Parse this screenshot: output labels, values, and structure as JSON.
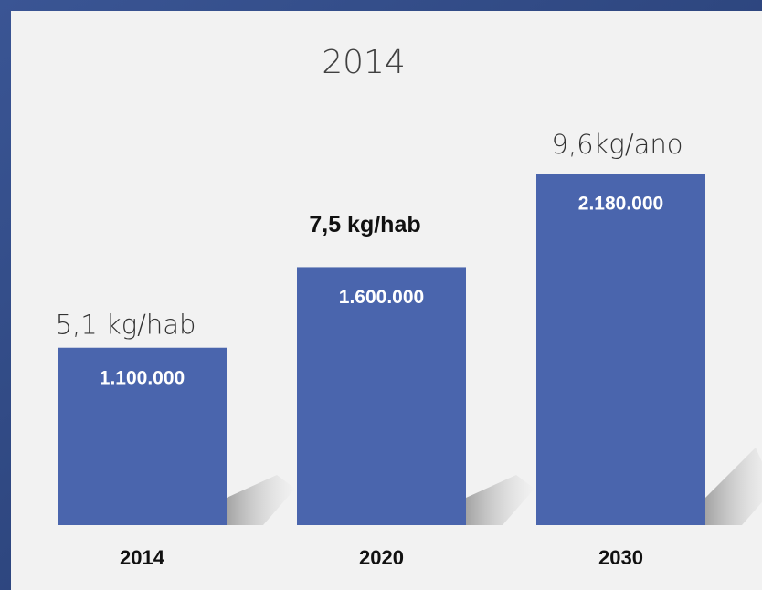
{
  "chart_data": {
    "type": "bar",
    "title": "2014",
    "categories": [
      "2014",
      "2020",
      "2030"
    ],
    "values": [
      1100000,
      1600000,
      2180000
    ],
    "value_labels": [
      "1.100.000",
      "1.600.000",
      "2.180.000"
    ],
    "annotations": [
      "5,1 kg/hab",
      "7,5 kg/hab",
      "9,6kg/ano"
    ],
    "color": "#4a65ad"
  }
}
